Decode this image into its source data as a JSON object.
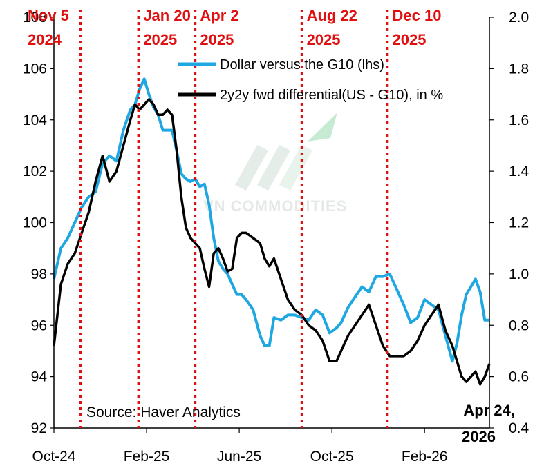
{
  "chart_data": {
    "type": "line",
    "title": "",
    "source": "Source: Haver Analytics",
    "x_ticks": [
      {
        "label": "Oct-24",
        "t": 0
      },
      {
        "label": "Feb-25",
        "t": 4
      },
      {
        "label": "Jun-25",
        "t": 8
      },
      {
        "label": "Oct-25",
        "t": 12
      },
      {
        "label": "Feb-26",
        "t": 16
      }
    ],
    "x_range": [
      0,
      18.8
    ],
    "y_left": {
      "range": [
        92,
        108
      ],
      "ticks": [
        92,
        94,
        96,
        98,
        100,
        102,
        104,
        106,
        108
      ]
    },
    "y_right": {
      "range": [
        0.4,
        2.0
      ],
      "ticks": [
        "0.4",
        "0.6",
        "0.8",
        "1.0",
        "1.2",
        "1.4",
        "1.6",
        "1.8",
        "2.0"
      ]
    },
    "series": [
      {
        "name": "Dollar versus the G10 (lhs)",
        "axis": "left",
        "color": "#1ea7e1",
        "points": [
          [
            0.0,
            97.8
          ],
          [
            0.3,
            99.0
          ],
          [
            0.6,
            99.4
          ],
          [
            0.9,
            100.0
          ],
          [
            1.2,
            100.6
          ],
          [
            1.5,
            101.0
          ],
          [
            1.8,
            101.2
          ],
          [
            2.1,
            102.3
          ],
          [
            2.4,
            102.6
          ],
          [
            2.7,
            102.4
          ],
          [
            3.0,
            103.6
          ],
          [
            3.3,
            104.4
          ],
          [
            3.5,
            104.6
          ],
          [
            3.7,
            105.2
          ],
          [
            3.9,
            105.6
          ],
          [
            4.1,
            105.0
          ],
          [
            4.3,
            104.5
          ],
          [
            4.5,
            104.2
          ],
          [
            4.7,
            103.6
          ],
          [
            4.9,
            103.6
          ],
          [
            5.1,
            103.6
          ],
          [
            5.3,
            102.8
          ],
          [
            5.5,
            101.9
          ],
          [
            5.7,
            101.7
          ],
          [
            5.9,
            101.6
          ],
          [
            6.1,
            101.7
          ],
          [
            6.3,
            101.4
          ],
          [
            6.5,
            101.5
          ],
          [
            6.7,
            100.7
          ],
          [
            6.9,
            99.4
          ],
          [
            7.1,
            98.5
          ],
          [
            7.3,
            98.2
          ],
          [
            7.5,
            98.0
          ],
          [
            7.7,
            97.6
          ],
          [
            7.9,
            97.2
          ],
          [
            8.1,
            97.2
          ],
          [
            8.3,
            97.0
          ],
          [
            8.6,
            96.6
          ],
          [
            8.9,
            95.6
          ],
          [
            9.1,
            95.2
          ],
          [
            9.3,
            95.2
          ],
          [
            9.5,
            96.3
          ],
          [
            9.8,
            96.2
          ],
          [
            10.1,
            96.4
          ],
          [
            10.4,
            96.4
          ],
          [
            10.7,
            96.3
          ],
          [
            11.0,
            96.2
          ],
          [
            11.3,
            96.6
          ],
          [
            11.6,
            96.4
          ],
          [
            11.9,
            95.7
          ],
          [
            12.2,
            95.9
          ],
          [
            12.4,
            96.1
          ],
          [
            12.7,
            96.7
          ],
          [
            13.0,
            97.1
          ],
          [
            13.3,
            97.5
          ],
          [
            13.6,
            97.3
          ],
          [
            13.9,
            97.9
          ],
          [
            14.2,
            97.9
          ],
          [
            14.5,
            98.0
          ],
          [
            14.8,
            97.4
          ],
          [
            15.1,
            96.8
          ],
          [
            15.4,
            96.1
          ],
          [
            15.7,
            96.3
          ],
          [
            16.0,
            97.0
          ],
          [
            16.3,
            96.8
          ],
          [
            16.6,
            96.6
          ],
          [
            16.9,
            95.6
          ],
          [
            17.2,
            94.6
          ],
          [
            17.4,
            95.3
          ],
          [
            17.6,
            96.4
          ],
          [
            17.8,
            97.2
          ],
          [
            18.0,
            97.5
          ],
          [
            18.2,
            97.8
          ],
          [
            18.4,
            97.3
          ],
          [
            18.6,
            96.2
          ],
          [
            18.8,
            96.2
          ]
        ]
      },
      {
        "name": "2y2y fwd differential(US - G10), in %",
        "axis": "right",
        "color": "#000000",
        "points": [
          [
            0.0,
            0.72
          ],
          [
            0.3,
            0.96
          ],
          [
            0.6,
            1.04
          ],
          [
            0.9,
            1.08
          ],
          [
            1.2,
            1.16
          ],
          [
            1.5,
            1.24
          ],
          [
            1.8,
            1.36
          ],
          [
            2.1,
            1.46
          ],
          [
            2.4,
            1.36
          ],
          [
            2.7,
            1.4
          ],
          [
            3.0,
            1.5
          ],
          [
            3.3,
            1.6
          ],
          [
            3.5,
            1.66
          ],
          [
            3.7,
            1.64
          ],
          [
            3.9,
            1.66
          ],
          [
            4.1,
            1.68
          ],
          [
            4.3,
            1.66
          ],
          [
            4.5,
            1.62
          ],
          [
            4.7,
            1.62
          ],
          [
            4.9,
            1.64
          ],
          [
            5.1,
            1.62
          ],
          [
            5.3,
            1.48
          ],
          [
            5.5,
            1.3
          ],
          [
            5.7,
            1.18
          ],
          [
            5.9,
            1.14
          ],
          [
            6.1,
            1.12
          ],
          [
            6.3,
            1.1
          ],
          [
            6.5,
            1.02
          ],
          [
            6.7,
            0.95
          ],
          [
            6.9,
            1.08
          ],
          [
            7.1,
            1.1
          ],
          [
            7.3,
            1.06
          ],
          [
            7.5,
            1.01
          ],
          [
            7.7,
            1.02
          ],
          [
            7.9,
            1.14
          ],
          [
            8.1,
            1.16
          ],
          [
            8.3,
            1.16
          ],
          [
            8.6,
            1.14
          ],
          [
            8.9,
            1.12
          ],
          [
            9.1,
            1.06
          ],
          [
            9.3,
            1.03
          ],
          [
            9.5,
            1.06
          ],
          [
            9.8,
            0.98
          ],
          [
            10.1,
            0.9
          ],
          [
            10.4,
            0.86
          ],
          [
            10.7,
            0.84
          ],
          [
            11.0,
            0.8
          ],
          [
            11.3,
            0.78
          ],
          [
            11.6,
            0.74
          ],
          [
            11.9,
            0.66
          ],
          [
            12.2,
            0.66
          ],
          [
            12.4,
            0.7
          ],
          [
            12.7,
            0.76
          ],
          [
            13.0,
            0.8
          ],
          [
            13.3,
            0.84
          ],
          [
            13.6,
            0.88
          ],
          [
            13.9,
            0.8
          ],
          [
            14.2,
            0.72
          ],
          [
            14.5,
            0.68
          ],
          [
            14.8,
            0.68
          ],
          [
            15.1,
            0.68
          ],
          [
            15.4,
            0.7
          ],
          [
            15.7,
            0.74
          ],
          [
            16.0,
            0.8
          ],
          [
            16.3,
            0.84
          ],
          [
            16.6,
            0.88
          ],
          [
            16.9,
            0.78
          ],
          [
            17.2,
            0.72
          ],
          [
            17.4,
            0.66
          ],
          [
            17.6,
            0.6
          ],
          [
            17.8,
            0.58
          ],
          [
            18.0,
            0.6
          ],
          [
            18.2,
            0.62
          ],
          [
            18.4,
            0.57
          ],
          [
            18.6,
            0.6
          ],
          [
            18.8,
            0.65
          ]
        ]
      }
    ],
    "events": [
      {
        "line1": "Nov 5",
        "line2": "2024",
        "t": 1.15
      },
      {
        "line1": "Jan 20",
        "line2": "2025",
        "t": 3.65
      },
      {
        "line1": "Apr 2",
        "line2": "2025",
        "t": 6.1
      },
      {
        "line1": "Aug 22",
        "line2": "2025",
        "t": 10.7
      },
      {
        "line1": "Dec 10",
        "line2": "2025",
        "t": 14.4
      }
    ],
    "end_annotation": {
      "line1": "Apr 24,",
      "line2": "2026"
    },
    "watermark": "VN COMMODITIES",
    "colors": {
      "event": "#e01010",
      "axis": "#000000"
    }
  }
}
